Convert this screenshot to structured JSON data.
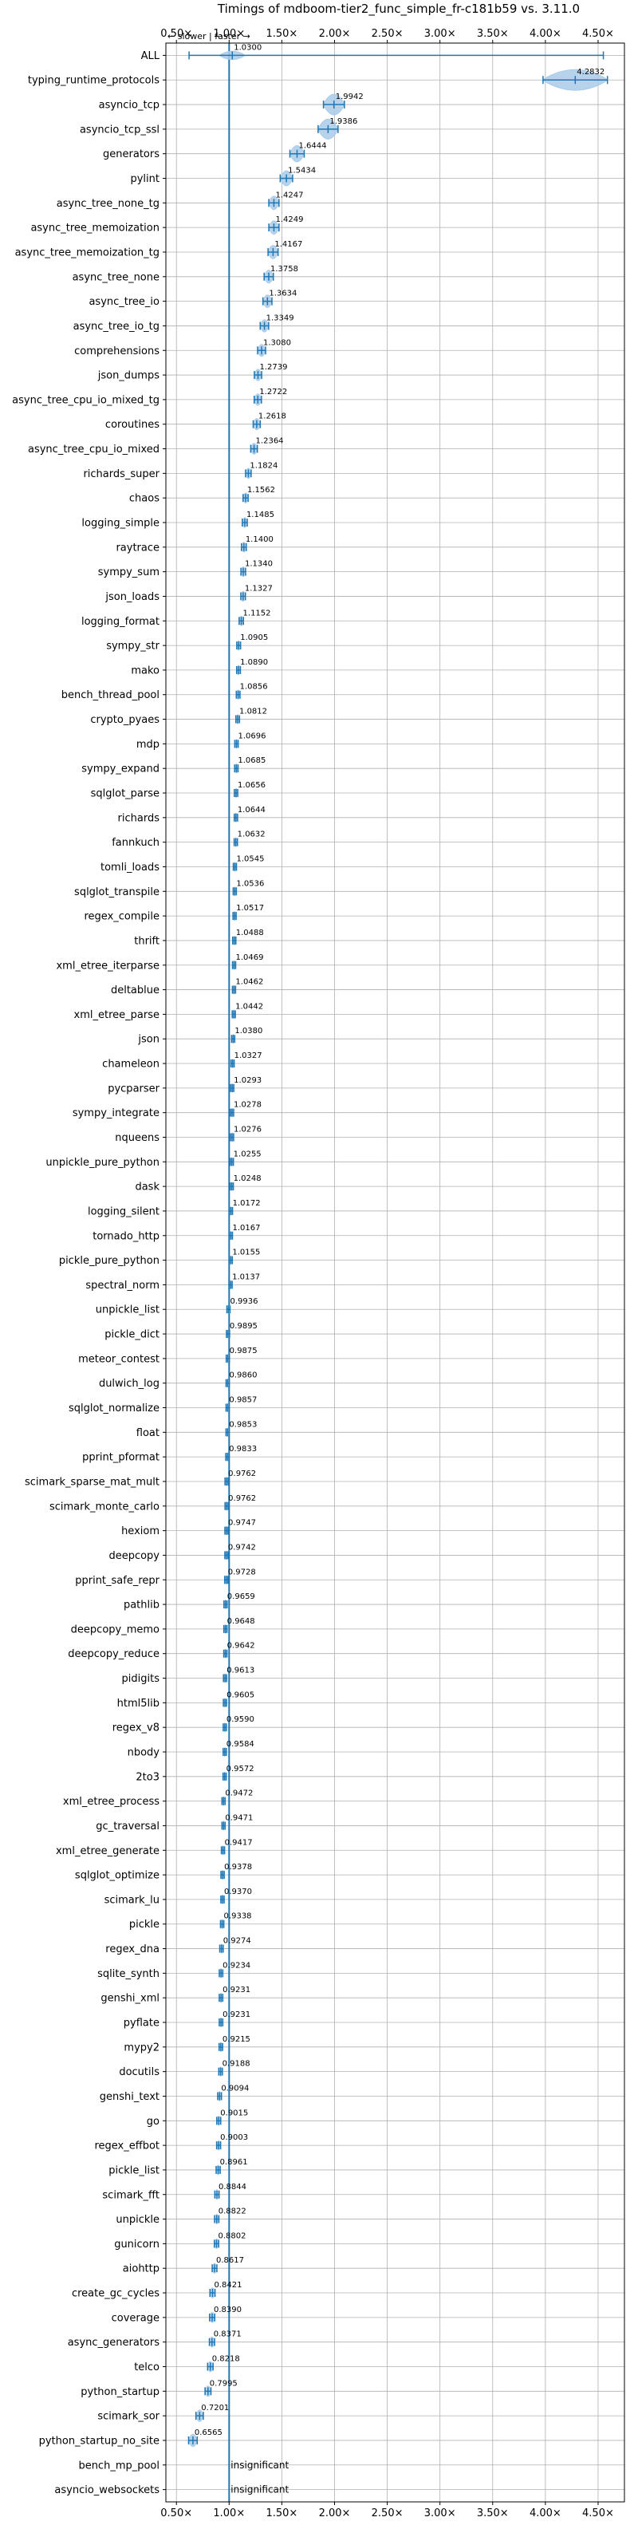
{
  "chart_data": {
    "type": "violin",
    "title": "Timings of mdboom-tier2_func_simple_fr-c181b59 vs. 3.11.0",
    "direction_note": "← slower | faster →",
    "x_ticks": [
      "0.50×",
      "1.00×",
      "1.50×",
      "2.00×",
      "2.50×",
      "3.00×",
      "3.50×",
      "4.00×",
      "4.50×"
    ],
    "x_tick_values": [
      0.5,
      1.0,
      1.5,
      2.0,
      2.5,
      3.0,
      3.5,
      4.0,
      4.5
    ],
    "xlim": [
      0.4,
      4.75
    ],
    "grid": true,
    "reference_line": 1.0,
    "benchmarks": [
      {
        "name": "ALL",
        "value": 1.03,
        "label": "1.0300"
      },
      {
        "name": "typing_runtime_protocols",
        "value": 4.2832,
        "label": "4.2832"
      },
      {
        "name": "asyncio_tcp",
        "value": 1.9942,
        "label": "1.9942"
      },
      {
        "name": "asyncio_tcp_ssl",
        "value": 1.9386,
        "label": "1.9386"
      },
      {
        "name": "generators",
        "value": 1.6444,
        "label": "1.6444"
      },
      {
        "name": "pylint",
        "value": 1.5434,
        "label": "1.5434"
      },
      {
        "name": "async_tree_none_tg",
        "value": 1.4247,
        "label": "1.4247"
      },
      {
        "name": "async_tree_memoization",
        "value": 1.4249,
        "label": "1.4249"
      },
      {
        "name": "async_tree_memoization_tg",
        "value": 1.4167,
        "label": "1.4167"
      },
      {
        "name": "async_tree_none",
        "value": 1.3758,
        "label": "1.3758"
      },
      {
        "name": "async_tree_io",
        "value": 1.3634,
        "label": "1.3634"
      },
      {
        "name": "async_tree_io_tg",
        "value": 1.3349,
        "label": "1.3349"
      },
      {
        "name": "comprehensions",
        "value": 1.308,
        "label": "1.3080"
      },
      {
        "name": "json_dumps",
        "value": 1.2739,
        "label": "1.2739"
      },
      {
        "name": "async_tree_cpu_io_mixed_tg",
        "value": 1.2722,
        "label": "1.2722"
      },
      {
        "name": "coroutines",
        "value": 1.2618,
        "label": "1.2618"
      },
      {
        "name": "async_tree_cpu_io_mixed",
        "value": 1.2364,
        "label": "1.2364"
      },
      {
        "name": "richards_super",
        "value": 1.1824,
        "label": "1.1824"
      },
      {
        "name": "chaos",
        "value": 1.1562,
        "label": "1.1562"
      },
      {
        "name": "logging_simple",
        "value": 1.1485,
        "label": "1.1485"
      },
      {
        "name": "raytrace",
        "value": 1.14,
        "label": "1.1400"
      },
      {
        "name": "sympy_sum",
        "value": 1.134,
        "label": "1.1340"
      },
      {
        "name": "json_loads",
        "value": 1.1327,
        "label": "1.1327"
      },
      {
        "name": "logging_format",
        "value": 1.1152,
        "label": "1.1152"
      },
      {
        "name": "sympy_str",
        "value": 1.0905,
        "label": "1.0905"
      },
      {
        "name": "mako",
        "value": 1.089,
        "label": "1.0890"
      },
      {
        "name": "bench_thread_pool",
        "value": 1.0856,
        "label": "1.0856"
      },
      {
        "name": "crypto_pyaes",
        "value": 1.0812,
        "label": "1.0812"
      },
      {
        "name": "mdp",
        "value": 1.0696,
        "label": "1.0696"
      },
      {
        "name": "sympy_expand",
        "value": 1.0685,
        "label": "1.0685"
      },
      {
        "name": "sqlglot_parse",
        "value": 1.0656,
        "label": "1.0656"
      },
      {
        "name": "richards",
        "value": 1.0644,
        "label": "1.0644"
      },
      {
        "name": "fannkuch",
        "value": 1.0632,
        "label": "1.0632"
      },
      {
        "name": "tomli_loads",
        "value": 1.0545,
        "label": "1.0545"
      },
      {
        "name": "sqlglot_transpile",
        "value": 1.0536,
        "label": "1.0536"
      },
      {
        "name": "regex_compile",
        "value": 1.0517,
        "label": "1.0517"
      },
      {
        "name": "thrift",
        "value": 1.0488,
        "label": "1.0488"
      },
      {
        "name": "xml_etree_iterparse",
        "value": 1.0469,
        "label": "1.0469"
      },
      {
        "name": "deltablue",
        "value": 1.0462,
        "label": "1.0462"
      },
      {
        "name": "xml_etree_parse",
        "value": 1.0442,
        "label": "1.0442"
      },
      {
        "name": "json",
        "value": 1.038,
        "label": "1.0380"
      },
      {
        "name": "chameleon",
        "value": 1.0327,
        "label": "1.0327"
      },
      {
        "name": "pycparser",
        "value": 1.0293,
        "label": "1.0293"
      },
      {
        "name": "sympy_integrate",
        "value": 1.0278,
        "label": "1.0278"
      },
      {
        "name": "nqueens",
        "value": 1.0276,
        "label": "1.0276"
      },
      {
        "name": "unpickle_pure_python",
        "value": 1.0255,
        "label": "1.0255"
      },
      {
        "name": "dask",
        "value": 1.0248,
        "label": "1.0248"
      },
      {
        "name": "logging_silent",
        "value": 1.0172,
        "label": "1.0172"
      },
      {
        "name": "tornado_http",
        "value": 1.0167,
        "label": "1.0167"
      },
      {
        "name": "pickle_pure_python",
        "value": 1.0155,
        "label": "1.0155"
      },
      {
        "name": "spectral_norm",
        "value": 1.0137,
        "label": "1.0137"
      },
      {
        "name": "unpickle_list",
        "value": 0.9936,
        "label": "0.9936"
      },
      {
        "name": "pickle_dict",
        "value": 0.9895,
        "label": "0.9895"
      },
      {
        "name": "meteor_contest",
        "value": 0.9875,
        "label": "0.9875"
      },
      {
        "name": "dulwich_log",
        "value": 0.986,
        "label": "0.9860"
      },
      {
        "name": "sqlglot_normalize",
        "value": 0.9857,
        "label": "0.9857"
      },
      {
        "name": "float",
        "value": 0.9853,
        "label": "0.9853"
      },
      {
        "name": "pprint_pformat",
        "value": 0.9833,
        "label": "0.9833"
      },
      {
        "name": "scimark_sparse_mat_mult",
        "value": 0.9762,
        "label": "0.9762"
      },
      {
        "name": "scimark_monte_carlo",
        "value": 0.9762,
        "label": "0.9762"
      },
      {
        "name": "hexiom",
        "value": 0.9747,
        "label": "0.9747"
      },
      {
        "name": "deepcopy",
        "value": 0.9742,
        "label": "0.9742"
      },
      {
        "name": "pprint_safe_repr",
        "value": 0.9728,
        "label": "0.9728"
      },
      {
        "name": "pathlib",
        "value": 0.9659,
        "label": "0.9659"
      },
      {
        "name": "deepcopy_memo",
        "value": 0.9648,
        "label": "0.9648"
      },
      {
        "name": "deepcopy_reduce",
        "value": 0.9642,
        "label": "0.9642"
      },
      {
        "name": "pidigits",
        "value": 0.9613,
        "label": "0.9613"
      },
      {
        "name": "html5lib",
        "value": 0.9605,
        "label": "0.9605"
      },
      {
        "name": "regex_v8",
        "value": 0.959,
        "label": "0.9590"
      },
      {
        "name": "nbody",
        "value": 0.9584,
        "label": "0.9584"
      },
      {
        "name": "2to3",
        "value": 0.9572,
        "label": "0.9572"
      },
      {
        "name": "xml_etree_process",
        "value": 0.9472,
        "label": "0.9472"
      },
      {
        "name": "gc_traversal",
        "value": 0.9471,
        "label": "0.9471"
      },
      {
        "name": "xml_etree_generate",
        "value": 0.9417,
        "label": "0.9417"
      },
      {
        "name": "sqlglot_optimize",
        "value": 0.9378,
        "label": "0.9378"
      },
      {
        "name": "scimark_lu",
        "value": 0.937,
        "label": "0.9370"
      },
      {
        "name": "pickle",
        "value": 0.9338,
        "label": "0.9338"
      },
      {
        "name": "regex_dna",
        "value": 0.9274,
        "label": "0.9274"
      },
      {
        "name": "sqlite_synth",
        "value": 0.9234,
        "label": "0.9234"
      },
      {
        "name": "genshi_xml",
        "value": 0.9231,
        "label": "0.9231"
      },
      {
        "name": "pyflate",
        "value": 0.9231,
        "label": "0.9231"
      },
      {
        "name": "mypy2",
        "value": 0.9215,
        "label": "0.9215"
      },
      {
        "name": "docutils",
        "value": 0.9188,
        "label": "0.9188"
      },
      {
        "name": "genshi_text",
        "value": 0.9094,
        "label": "0.9094"
      },
      {
        "name": "go",
        "value": 0.9015,
        "label": "0.9015"
      },
      {
        "name": "regex_effbot",
        "value": 0.9003,
        "label": "0.9003"
      },
      {
        "name": "pickle_list",
        "value": 0.8961,
        "label": "0.8961"
      },
      {
        "name": "scimark_fft",
        "value": 0.8844,
        "label": "0.8844"
      },
      {
        "name": "unpickle",
        "value": 0.8822,
        "label": "0.8822"
      },
      {
        "name": "gunicorn",
        "value": 0.8802,
        "label": "0.8802"
      },
      {
        "name": "aiohttp",
        "value": 0.8617,
        "label": "0.8617"
      },
      {
        "name": "create_gc_cycles",
        "value": 0.8421,
        "label": "0.8421"
      },
      {
        "name": "coverage",
        "value": 0.839,
        "label": "0.8390"
      },
      {
        "name": "async_generators",
        "value": 0.8371,
        "label": "0.8371"
      },
      {
        "name": "telco",
        "value": 0.8218,
        "label": "0.8218"
      },
      {
        "name": "python_startup",
        "value": 0.7995,
        "label": "0.7995"
      },
      {
        "name": "scimark_sor",
        "value": 0.7201,
        "label": "0.7201"
      },
      {
        "name": "python_startup_no_site",
        "value": 0.6565,
        "label": "0.6565"
      },
      {
        "name": "bench_mp_pool",
        "value": null,
        "label": "insignificant"
      },
      {
        "name": "asyncio_websockets",
        "value": null,
        "label": "insignificant"
      }
    ],
    "colors": {
      "violin_fill": "#a9cbe8",
      "violin_edge": "#1f77b4",
      "reference_line": "#1f77b4",
      "grid": "#b0b0b0",
      "median_highlight": "#d62728"
    }
  }
}
